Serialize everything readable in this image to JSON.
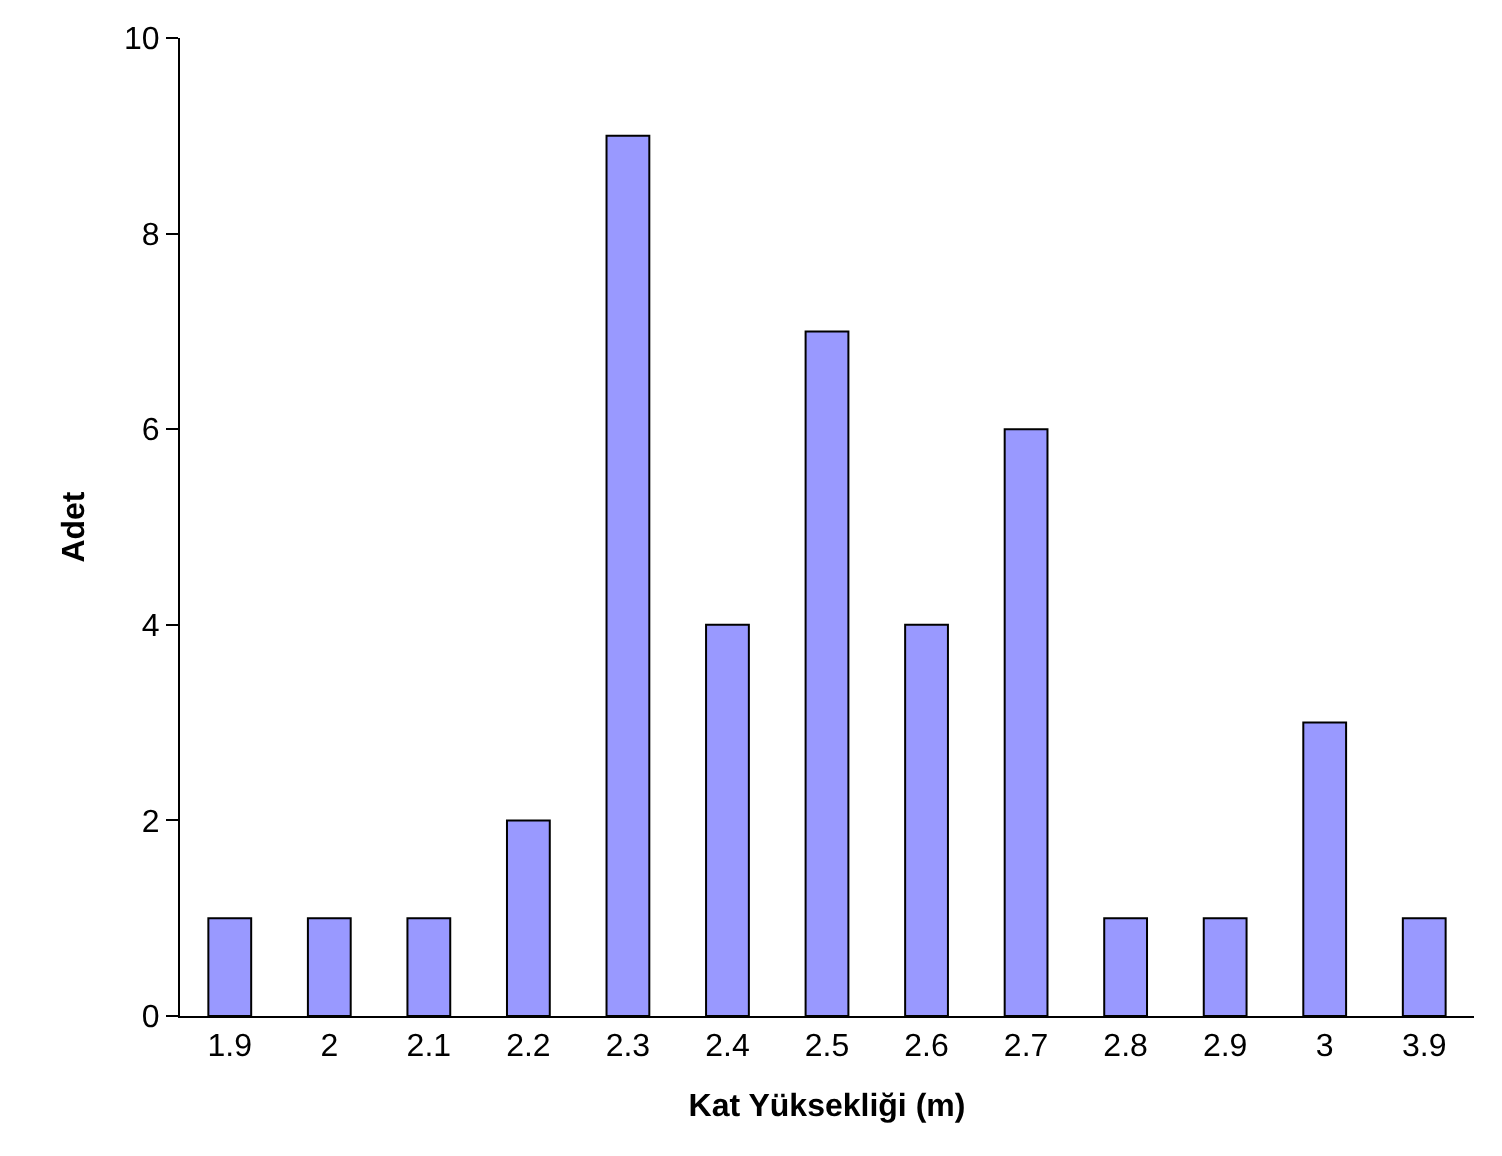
{
  "chart_data": {
    "type": "bar",
    "xlabel": "Kat Yüksekliği (m)",
    "ylabel": "Adet",
    "categories": [
      "1.9",
      "2",
      "2.1",
      "2.2",
      "2.3",
      "2.4",
      "2.5",
      "2.6",
      "2.7",
      "2.8",
      "2.9",
      "3",
      "3.9"
    ],
    "values": [
      1,
      1,
      1,
      2,
      9,
      4,
      7,
      4,
      6,
      1,
      1,
      3,
      1
    ],
    "color": "#9999ff",
    "ylim": [
      0,
      10
    ],
    "yticks": [
      0,
      2,
      4,
      6,
      8,
      10
    ]
  }
}
